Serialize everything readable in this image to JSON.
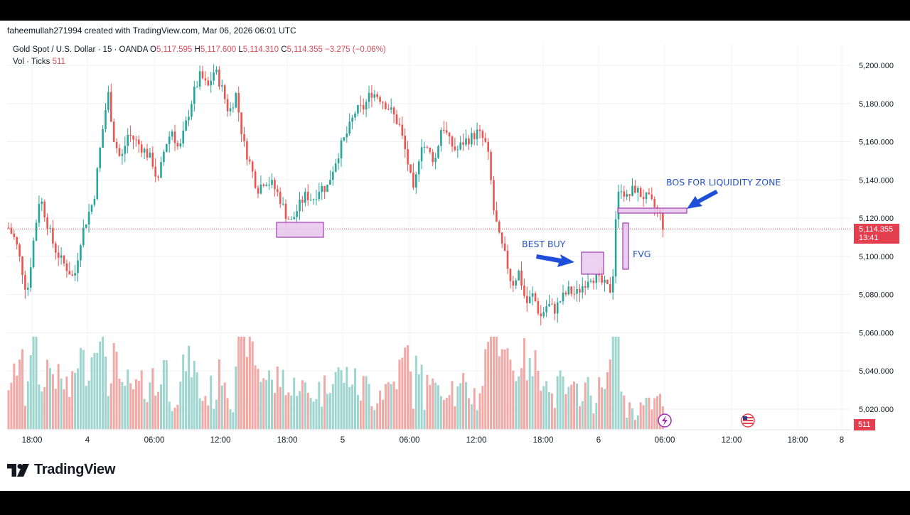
{
  "header": {
    "creator": "faheemullah271994 created with TradingView.com, Mar 06, 2026 06:01 UTC"
  },
  "legend": {
    "symbol": "Gold Spot / U.S. Dollar · 15 · OANDA",
    "o_label": "O",
    "o_value": "5,117.595",
    "h_label": "H",
    "h_value": "5,117.600",
    "l_label": "L",
    "l_value": "5,114.310",
    "c_label": "C",
    "c_value": "5,114.355",
    "change": "−3.275 (−0.06%)",
    "vol_label": "Vol · Ticks",
    "vol_value": "511"
  },
  "price_tag": {
    "price": "5,114.355",
    "countdown": "13:41"
  },
  "volume_tag": "511",
  "brand": {
    "name": "TradingView"
  },
  "annotations": {
    "best_buy": "BEST BUY",
    "fvg": "FVG",
    "bos": "BOS FOR LIQUIDITY ZONE"
  },
  "icons": {
    "lightning": "lightning-icon",
    "flag": "us-flag-icon",
    "logo": "tradingview-logo-icon"
  },
  "colors": {
    "up": "#26a69a",
    "down": "#ef5350",
    "vol_up": "#9ed6cf",
    "vol_down": "#f2a9a6",
    "zone_fill": "#e6c4ec",
    "zone_stroke": "#a13ab0",
    "arrow": "#1f4fd8"
  },
  "chart_data": {
    "type": "candlestick",
    "symbol": "XAUUSD",
    "interval": "15",
    "y_ticks": [
      5020,
      5040,
      5060,
      5080,
      5100,
      5120,
      5140,
      5160,
      5180,
      5200
    ],
    "y_tick_labels": [
      "5,020.000",
      "5,040.000",
      "5,060.000",
      "5,080.000",
      "5,100.000",
      "5,120.000",
      "5,140.000",
      "5,160.000",
      "5,180.000",
      "5,200.000"
    ],
    "ylim": [
      5005,
      5212
    ],
    "x_tick_labels": [
      "18:00",
      "4",
      "06:00",
      "12:00",
      "18:00",
      "5",
      "06:00",
      "12:00",
      "18:00",
      "6",
      "06:00",
      "12:00",
      "18:00",
      "8"
    ],
    "current_price": 5114.355,
    "price_path": [
      [
        0,
        5090
      ],
      [
        12,
        5115
      ],
      [
        22,
        5108
      ],
      [
        30,
        5095
      ],
      [
        38,
        5080
      ],
      [
        46,
        5105
      ],
      [
        56,
        5132
      ],
      [
        66,
        5118
      ],
      [
        76,
        5105
      ],
      [
        86,
        5098
      ],
      [
        96,
        5093
      ],
      [
        104,
        5088
      ],
      [
        114,
        5110
      ],
      [
        124,
        5122
      ],
      [
        132,
        5130
      ],
      [
        142,
        5160
      ],
      [
        152,
        5186
      ],
      [
        160,
        5162
      ],
      [
        170,
        5150
      ],
      [
        180,
        5164
      ],
      [
        192,
        5160
      ],
      [
        204,
        5155
      ],
      [
        214,
        5150
      ],
      [
        222,
        5138
      ],
      [
        232,
        5158
      ],
      [
        242,
        5166
      ],
      [
        252,
        5155
      ],
      [
        262,
        5170
      ],
      [
        272,
        5185
      ],
      [
        282,
        5195
      ],
      [
        292,
        5188
      ],
      [
        302,
        5198
      ],
      [
        312,
        5188
      ],
      [
        322,
        5175
      ],
      [
        332,
        5185
      ],
      [
        342,
        5160
      ],
      [
        352,
        5148
      ],
      [
        362,
        5135
      ],
      [
        372,
        5140
      ],
      [
        382,
        5138
      ],
      [
        392,
        5132
      ],
      [
        402,
        5122
      ],
      [
        410,
        5118
      ],
      [
        420,
        5126
      ],
      [
        430,
        5132
      ],
      [
        440,
        5130
      ],
      [
        450,
        5136
      ],
      [
        460,
        5136
      ],
      [
        470,
        5148
      ],
      [
        480,
        5158
      ],
      [
        490,
        5166
      ],
      [
        500,
        5176
      ],
      [
        512,
        5178
      ],
      [
        522,
        5186
      ],
      [
        532,
        5184
      ],
      [
        542,
        5180
      ],
      [
        552,
        5175
      ],
      [
        562,
        5168
      ],
      [
        572,
        5152
      ],
      [
        582,
        5132
      ],
      [
        592,
        5160
      ],
      [
        602,
        5155
      ],
      [
        612,
        5150
      ],
      [
        622,
        5170
      ],
      [
        632,
        5160
      ],
      [
        642,
        5155
      ],
      [
        652,
        5160
      ],
      [
        662,
        5162
      ],
      [
        672,
        5165
      ],
      [
        682,
        5160
      ],
      [
        688,
        5150
      ],
      [
        694,
        5125
      ],
      [
        702,
        5110
      ],
      [
        712,
        5098
      ],
      [
        720,
        5085
      ],
      [
        730,
        5092
      ],
      [
        740,
        5075
      ],
      [
        750,
        5080
      ],
      [
        760,
        5068
      ],
      [
        770,
        5075
      ],
      [
        780,
        5072
      ],
      [
        790,
        5078
      ],
      [
        800,
        5082
      ],
      [
        810,
        5080
      ],
      [
        820,
        5085
      ],
      [
        830,
        5090
      ],
      [
        840,
        5088
      ],
      [
        850,
        5085
      ],
      [
        858,
        5082
      ],
      [
        862,
        5090
      ],
      [
        866,
        5120
      ],
      [
        872,
        5138
      ],
      [
        882,
        5130
      ],
      [
        892,
        5136
      ],
      [
        902,
        5132
      ],
      [
        912,
        5130
      ],
      [
        920,
        5126
      ],
      [
        928,
        5122
      ],
      [
        934,
        5114
      ]
    ]
  }
}
